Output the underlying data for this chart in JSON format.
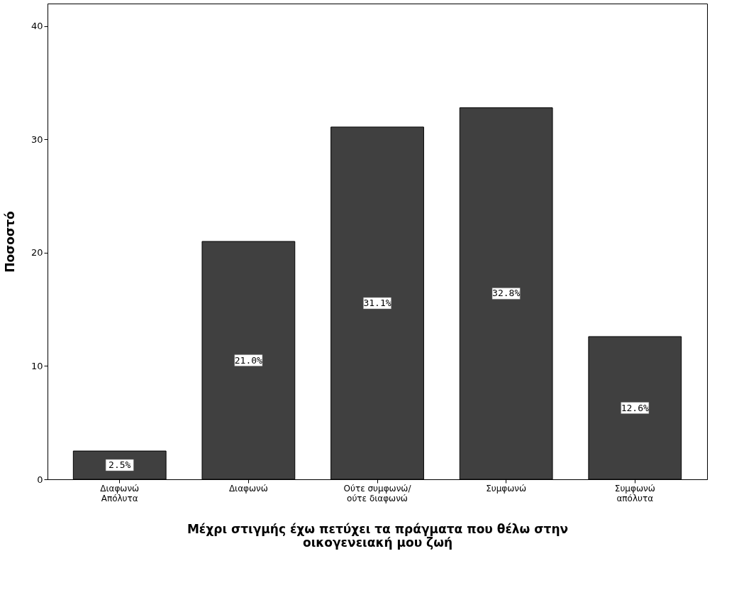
{
  "chart_data": {
    "type": "bar",
    "xlabel": "Μέχρι στιγμής έχω πετύχει τα πράγματα που θέλω στην\nοικογενειακή μου ζωή",
    "ylabel": "Ποσοστό",
    "categories": [
      "Διαφωνώ\nΑπόλυτα",
      "Διαφωνώ",
      "Ούτε συμφωνώ/\nούτε διαφωνώ",
      "Συμφωνώ",
      "Συμφωνώ\nαπόλυτα"
    ],
    "values": [
      2.5,
      21.0,
      31.1,
      32.8,
      12.6
    ],
    "value_labels": [
      "2.5%",
      "21.0%",
      "31.1%",
      "32.8%",
      "12.6%"
    ],
    "color": "#404040",
    "ylim": [
      0,
      42
    ],
    "yticks": [
      0,
      10,
      20,
      30,
      40
    ],
    "grid": false
  }
}
